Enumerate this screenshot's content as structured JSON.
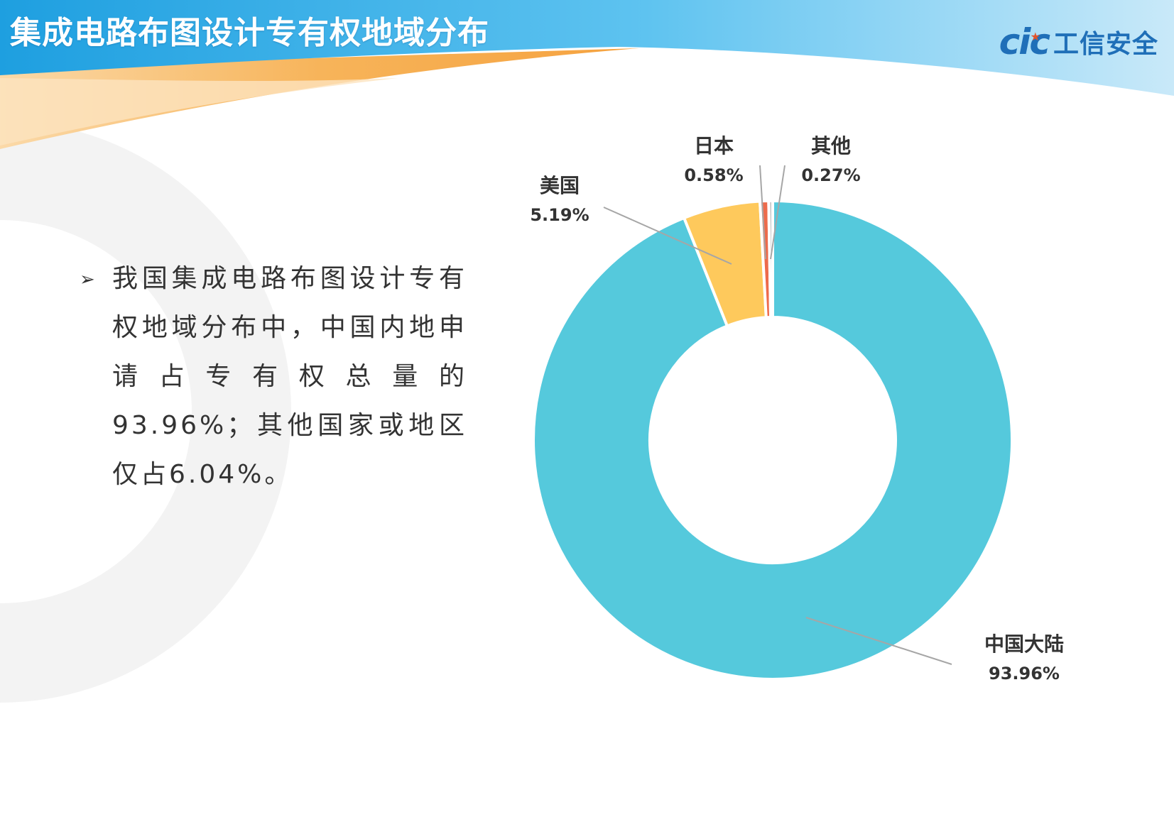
{
  "header": {
    "title": "集成电路布图设计专有权地域分布",
    "logo_mark": "cic",
    "logo_text": "工信安全"
  },
  "colors": {
    "title_bar": "#2aa7e3",
    "accent_orange": "#f6a64a",
    "china": "#55c9dc",
    "usa": "#fec95c",
    "japan": "#ed6b4c",
    "other": "#c3c3c3"
  },
  "body": {
    "bullet_icon": "arrow-right-icon",
    "bullet_text": "我国集成电路布图设计专有权地域分布中，中国内地申请占专有权总量的93.96%；其他国家或地区仅占6.04%。"
  },
  "chart_data": {
    "type": "pie",
    "donut": true,
    "title": "",
    "slices": [
      {
        "name": "中国大陆",
        "value": 93.96,
        "label": "93.96%",
        "color": "#55c9dc"
      },
      {
        "name": "美国",
        "value": 5.19,
        "label": "5.19%",
        "color": "#fec95c"
      },
      {
        "name": "日本",
        "value": 0.58,
        "label": "0.58%",
        "color": "#ed6b4c"
      },
      {
        "name": "其他",
        "value": 0.27,
        "label": "0.27%",
        "color": "#c3c3c3"
      }
    ]
  }
}
